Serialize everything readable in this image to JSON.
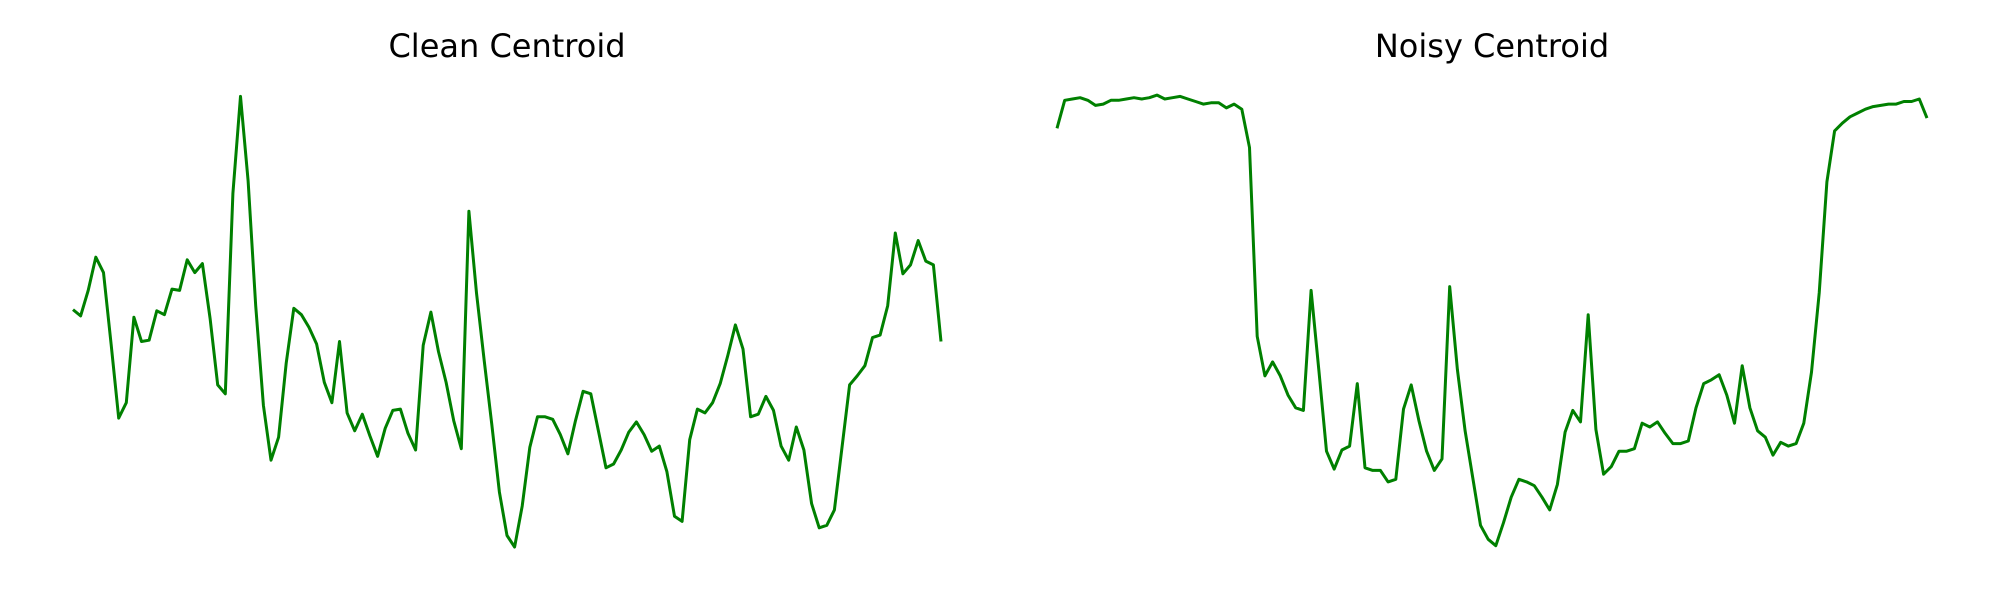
{
  "chart_data": [
    {
      "type": "line",
      "title": "Clean Centroid",
      "color": "#008000",
      "ylim": [
        0,
        380
      ],
      "values": [
        197,
        192,
        212,
        238,
        226,
        170,
        112,
        124,
        191,
        172,
        173,
        196,
        193,
        213,
        212,
        236,
        226,
        233,
        190,
        138,
        131,
        288,
        364,
        298,
        200,
        122,
        79,
        97,
        155,
        198,
        193,
        183,
        170,
        140,
        124,
        172,
        116,
        102,
        115,
        98,
        82,
        104,
        118,
        119,
        100,
        87,
        169,
        195,
        164,
        140,
        110,
        88,
        274,
        210,
        157,
        107,
        54,
        20,
        11,
        43,
        89,
        113,
        113,
        111,
        99,
        84,
        110,
        133,
        131,
        102,
        73,
        76,
        87,
        101,
        109,
        99,
        86,
        90,
        70,
        35,
        31,
        95,
        119,
        116,
        124,
        139,
        161,
        185,
        166,
        113,
        115,
        129,
        118,
        90,
        79,
        105,
        87,
        45,
        26,
        28,
        40,
        89,
        138,
        145,
        153,
        175,
        177,
        200,
        257,
        225,
        232,
        251,
        235,
        232,
        172
      ]
    },
    {
      "type": "line",
      "title": "Noisy Centroid",
      "color": "#008000",
      "ylim": [
        0,
        380
      ],
      "values": [
        339,
        361,
        362,
        363,
        361,
        357,
        358,
        361,
        361,
        362,
        363,
        362,
        363,
        365,
        362,
        363,
        364,
        362,
        360,
        358,
        359,
        359,
        355,
        358,
        354,
        324,
        176,
        145,
        156,
        145,
        130,
        120,
        118,
        212,
        150,
        86,
        72,
        87,
        90,
        139,
        73,
        71,
        71,
        62,
        64,
        119,
        138,
        110,
        86,
        71,
        80,
        215,
        150,
        102,
        65,
        28,
        17,
        12,
        30,
        50,
        64,
        62,
        59,
        50,
        40,
        60,
        101,
        118,
        109,
        193,
        103,
        68,
        74,
        86,
        86,
        88,
        108,
        105,
        109,
        100,
        92,
        92,
        94,
        120,
        139,
        142,
        146,
        130,
        108,
        153,
        120,
        102,
        97,
        83,
        93,
        90,
        92,
        108,
        148,
        210,
        297,
        337,
        343,
        348,
        351,
        354,
        356,
        357,
        358,
        358,
        360,
        360,
        362,
        347
      ]
    }
  ]
}
